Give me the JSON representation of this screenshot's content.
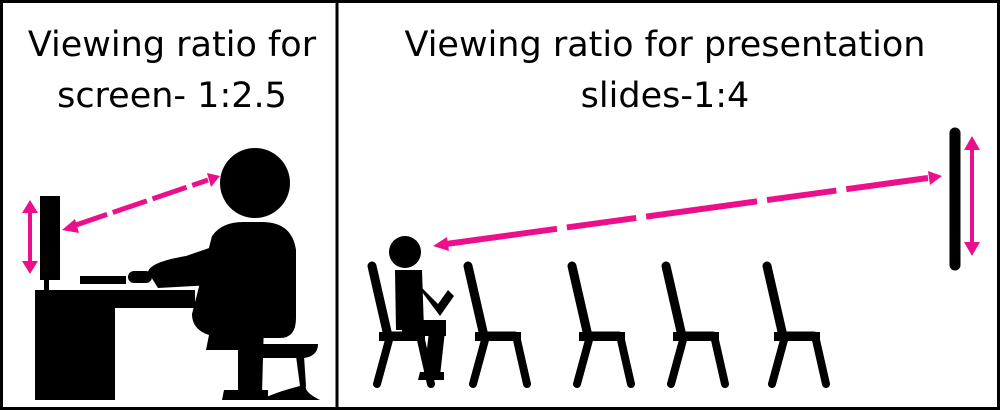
{
  "panels": {
    "left": {
      "title_line1": "Viewing ratio for",
      "title_line2": "screen- 1:2.5"
    },
    "right": {
      "title_line1": "Viewing ratio for presentation",
      "title_line2": "slides-1:4"
    }
  },
  "colors": {
    "accent": "#EC0F8C",
    "ink": "#000000",
    "background": "#FFFFFF"
  },
  "icons": [
    "person-at-desk-icon",
    "monitor-icon",
    "seated-person-icon",
    "chair-icon",
    "projection-screen-icon",
    "double-arrow-icon"
  ]
}
